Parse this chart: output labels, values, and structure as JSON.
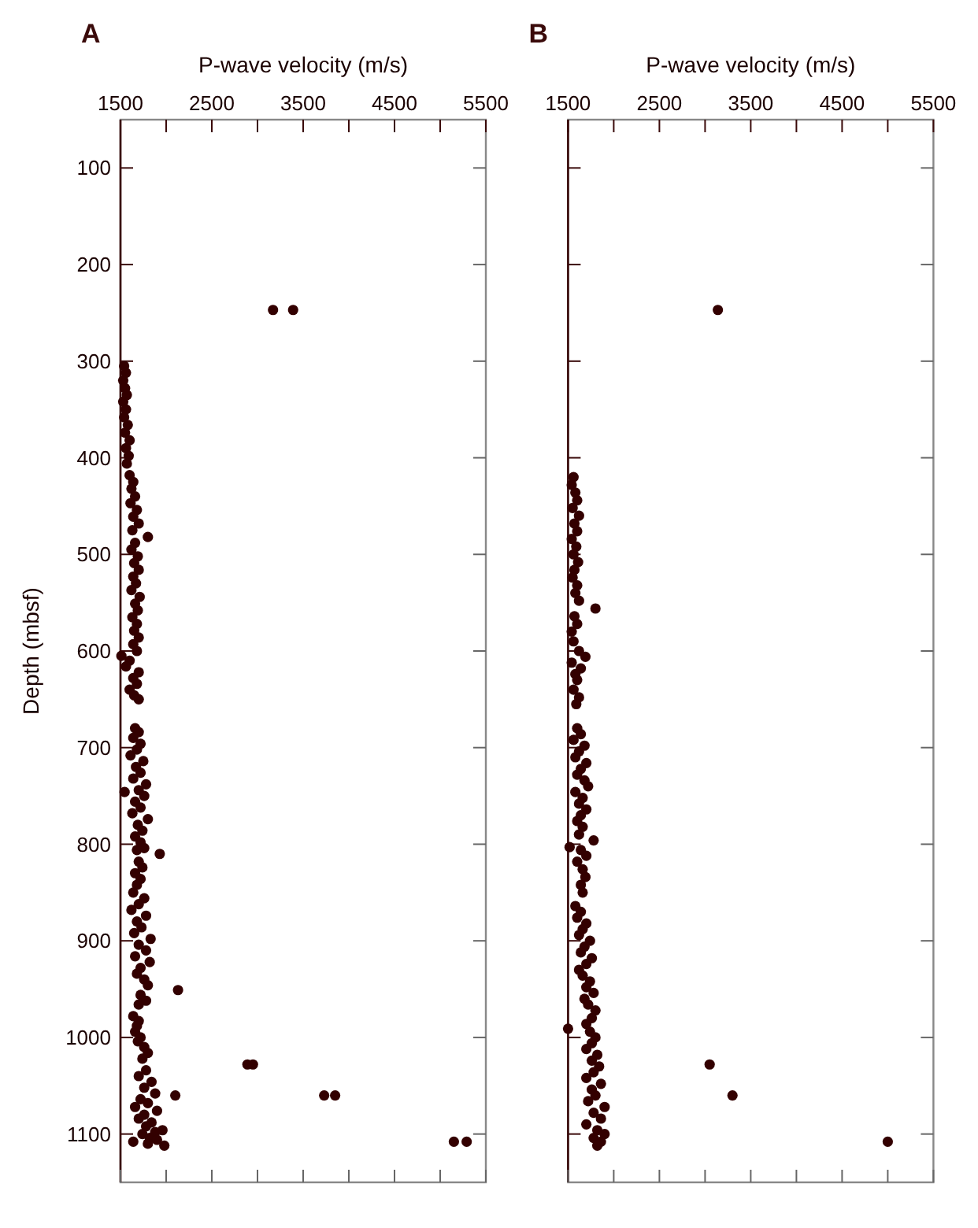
{
  "chart_data": [
    {
      "type": "scatter",
      "title": "A",
      "xlabel": "P-wave velocity (m/s)",
      "ylabel": "Depth (mbsf)",
      "marker": "circle",
      "grid": false,
      "xlim": [
        1500,
        5500
      ],
      "xticks": [
        1500,
        {
          "value": 2000,
          "label": null
        },
        2500,
        {
          "value": 3000,
          "label": null
        },
        3500,
        {
          "value": 4000,
          "label": null
        },
        4500,
        {
          "value": 5000,
          "label": null
        },
        5500
      ],
      "ylim": [
        1150,
        50
      ],
      "yticks": [
        100,
        200,
        300,
        400,
        500,
        600,
        700,
        800,
        900,
        1000,
        1100
      ],
      "series": [
        {
          "color": "#330000",
          "x": [
            1540,
            1560,
            1530,
            1550,
            1570,
            1530,
            1560,
            1540,
            1580,
            1550,
            1600,
            1560,
            1590,
            1570,
            1600,
            1640,
            1620,
            1660,
            1610,
            1680,
            1640,
            1700,
            1630,
            1800,
            1660,
            1620,
            1690,
            1650,
            1700,
            1640,
            1670,
            1620,
            1710,
            1660,
            1690,
            1630,
            1680,
            1650,
            1700,
            1640,
            1680,
            1510,
            1600,
            1560,
            1700,
            1640,
            1680,
            1600,
            1650,
            1700,
            1660,
            1700,
            1640,
            1720,
            1680,
            1610,
            1750,
            1670,
            1720,
            1640,
            1780,
            1545,
            1700,
            1760,
            1660,
            1720,
            1630,
            1800,
            1690,
            1740,
            1660,
            1720,
            1760,
            1930,
            1680,
            1700,
            1740,
            1660,
            1720,
            1680,
            1640,
            1760,
            1700,
            1620,
            1780,
            1680,
            1730,
            1650,
            1830,
            1700,
            1780,
            1660,
            1820,
            1720,
            1680,
            1760,
            1800,
            2130,
            1720,
            1780,
            1700,
            1640,
            1700,
            1680,
            1660,
            1720,
            1690,
            1760,
            1800,
            1740,
            2890,
            2950,
            1780,
            1700,
            1840,
            1760,
            1880,
            2100,
            3730,
            3850,
            1720,
            1800,
            1660,
            1900,
            1760,
            1700,
            1840,
            1780,
            1960,
            1880,
            1740,
            1820,
            1900,
            1640,
            5150,
            5290,
            1800,
            1980,
            3170,
            3390
          ],
          "values": [
            305,
            312,
            320,
            328,
            335,
            342,
            350,
            358,
            366,
            374,
            382,
            390,
            398,
            406,
            418,
            425,
            432,
            440,
            447,
            454,
            461,
            468,
            475,
            482,
            488,
            495,
            502,
            509,
            516,
            523,
            530,
            537,
            544,
            551,
            558,
            565,
            572,
            579,
            586,
            593,
            600,
            605,
            610,
            616,
            622,
            628,
            634,
            640,
            646,
            650,
            680,
            684,
            690,
            696,
            702,
            708,
            714,
            720,
            726,
            732,
            738,
            746,
            744,
            750,
            756,
            762,
            768,
            774,
            780,
            786,
            792,
            798,
            804,
            810,
            806,
            818,
            824,
            830,
            836,
            842,
            850,
            856,
            862,
            868,
            874,
            880,
            886,
            892,
            898,
            904,
            910,
            916,
            922,
            928,
            934,
            940,
            946,
            951,
            956,
            962,
            966,
            978,
            983,
            988,
            994,
            1000,
            1004,
            1010,
            1016,
            1022,
            1028,
            1028,
            1034,
            1040,
            1046,
            1052,
            1058,
            1060,
            1060,
            1060,
            1064,
            1068,
            1072,
            1076,
            1080,
            1084,
            1088,
            1092,
            1096,
            1098,
            1100,
            1104,
            1106,
            1108,
            1108,
            1108,
            1110,
            1112,
            247,
            247
          ]
        }
      ]
    },
    {
      "type": "scatter",
      "title": "B",
      "xlabel": "P-wave velocity (m/s)",
      "marker": "circle",
      "grid": false,
      "tick_labels": "x",
      "xlim": [
        1500,
        5500
      ],
      "xticks": [
        1500,
        {
          "value": 2000,
          "label": null
        },
        2500,
        {
          "value": 3000,
          "label": null
        },
        3500,
        {
          "value": 4000,
          "label": null
        },
        4500,
        {
          "value": 5000,
          "label": null
        },
        5500
      ],
      "ylim": [
        1150,
        50
      ],
      "yticks": [
        100,
        200,
        300,
        400,
        500,
        600,
        700,
        800,
        900,
        1000,
        1100
      ],
      "series": [
        {
          "color": "#330000",
          "x": [
            3140,
            1560,
            1540,
            1580,
            1600,
            1550,
            1620,
            1570,
            1600,
            1540,
            1590,
            1560,
            1610,
            1570,
            1550,
            1600,
            1580,
            1620,
            1800,
            1570,
            1600,
            1540,
            1560,
            1620,
            1690,
            1540,
            1640,
            1580,
            1600,
            1560,
            1620,
            1590,
            1600,
            1640,
            1560,
            1680,
            1620,
            1580,
            1700,
            1640,
            1600,
            1680,
            1720,
            1580,
            1660,
            1620,
            1700,
            1640,
            1600,
            1660,
            1620,
            1780,
            1517,
            1640,
            1700,
            1600,
            1660,
            1690,
            1640,
            1660,
            1580,
            1640,
            1600,
            1700,
            1660,
            1620,
            1740,
            1680,
            1640,
            1760,
            1700,
            1620,
            1660,
            1740,
            1700,
            1780,
            1680,
            1720,
            1800,
            1760,
            1700,
            1500,
            1740,
            1800,
            1760,
            1700,
            1820,
            1760,
            3050,
            1840,
            1780,
            1700,
            1860,
            1760,
            3300,
            1800,
            1720,
            1900,
            1780,
            1860,
            1700,
            1820,
            1900,
            1780,
            1860,
            5000,
            1820
          ],
          "values": [
            247,
            420,
            428,
            436,
            444,
            452,
            460,
            468,
            476,
            484,
            492,
            500,
            508,
            516,
            524,
            532,
            540,
            548,
            556,
            564,
            572,
            580,
            590,
            600,
            606,
            612,
            618,
            624,
            630,
            640,
            648,
            655,
            680,
            686,
            692,
            698,
            704,
            710,
            716,
            722,
            728,
            734,
            740,
            746,
            752,
            758,
            764,
            770,
            776,
            782,
            790,
            796,
            803,
            806,
            812,
            818,
            826,
            834,
            842,
            850,
            864,
            870,
            876,
            882,
            888,
            894,
            900,
            906,
            912,
            918,
            924,
            930,
            936,
            942,
            948,
            954,
            960,
            966,
            972,
            980,
            986,
            991,
            994,
            1000,
            1006,
            1012,
            1018,
            1024,
            1028,
            1030,
            1036,
            1042,
            1048,
            1054,
            1060,
            1060,
            1066,
            1072,
            1078,
            1084,
            1090,
            1096,
            1100,
            1104,
            1108,
            1108,
            1112
          ]
        }
      ]
    }
  ]
}
